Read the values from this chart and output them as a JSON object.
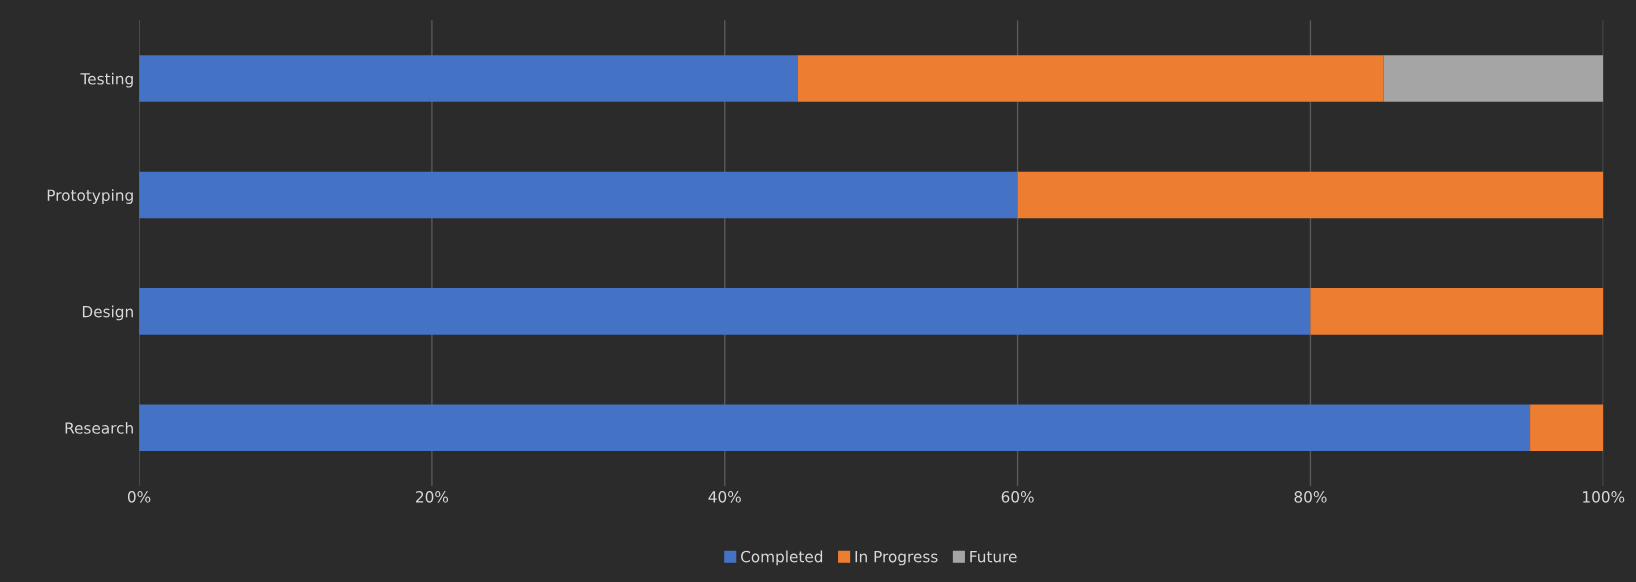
{
  "chart_data": {
    "type": "bar",
    "orientation": "horizontal",
    "stacked": true,
    "categories": [
      "Testing",
      "Prototyping",
      "Design",
      "Research"
    ],
    "series": [
      {
        "name": "Completed",
        "color": "#4472c4",
        "values": [
          45,
          60,
          80,
          95
        ]
      },
      {
        "name": "In Progress",
        "color": "#ed7d31",
        "values": [
          40,
          40,
          20,
          5
        ]
      },
      {
        "name": "Future",
        "color": "#a5a5a5",
        "values": [
          15,
          0,
          0,
          0
        ]
      }
    ],
    "xlim": [
      0,
      100
    ],
    "xticks": [
      {
        "value": 0,
        "label": "0%"
      },
      {
        "value": 20,
        "label": "20%"
      },
      {
        "value": 40,
        "label": "40%"
      },
      {
        "value": 60,
        "label": "60%"
      },
      {
        "value": 80,
        "label": "80%"
      },
      {
        "value": 100,
        "label": "100%"
      }
    ],
    "grid": "x",
    "legend": "bottom"
  }
}
